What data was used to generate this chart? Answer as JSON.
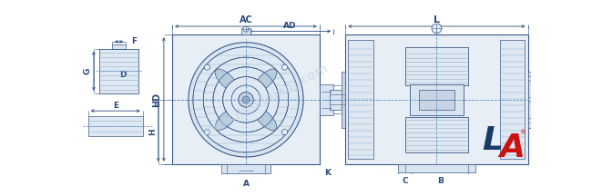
{
  "bg_color": "#ffffff",
  "line_color": "#3a5a8a",
  "dim_color": "#2a4a7a",
  "dashed_color": "#5588bb",
  "fill_light": "#e8eef6",
  "fill_med": "#d8e4f0",
  "fill_dark": "#c8d4e4",
  "fill_hatch": "#dde8f2",
  "logo_red": "#cc1111",
  "logo_blue": "#1a3a6a",
  "watermark_color": "#c5d5e8",
  "tl": 0.5,
  "ml": 0.8,
  "labels": {
    "AC": "AC",
    "AD": "AD",
    "L": "L",
    "HD": "HD",
    "F": "F",
    "G": "G",
    "D": "D",
    "E_shaft": "E",
    "H": "H",
    "A": "A",
    "K": "K",
    "E_side": "E",
    "C": "C",
    "B": "B"
  },
  "figsize": [
    6.5,
    2.16
  ],
  "dpi": 100
}
